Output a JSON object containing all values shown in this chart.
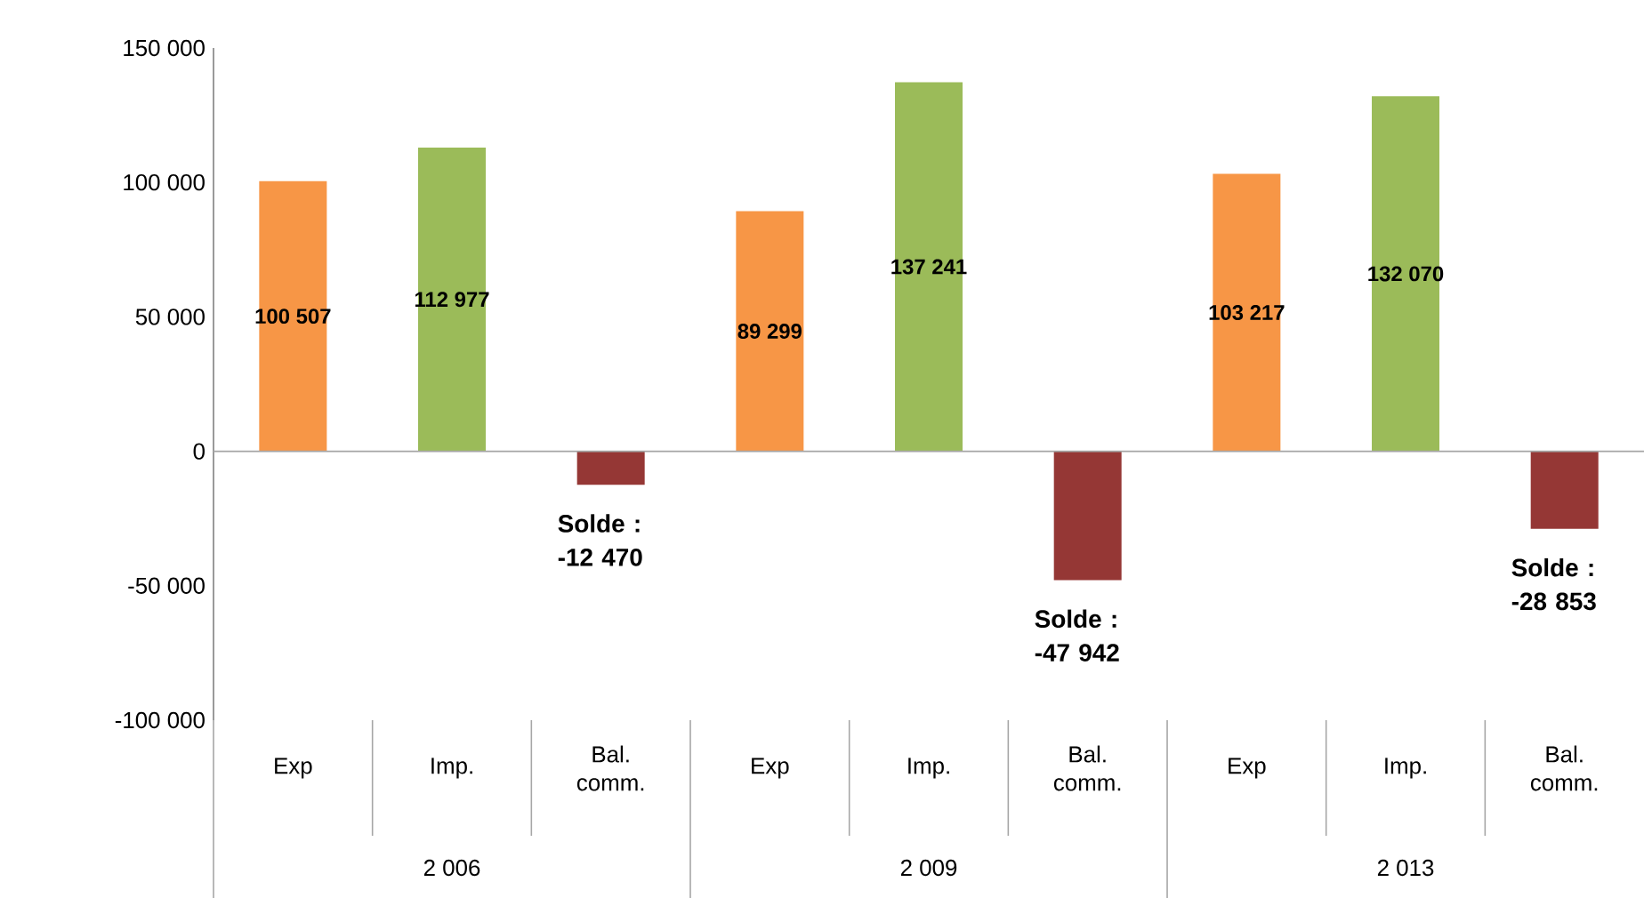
{
  "chart_data": {
    "type": "bar",
    "categories": [
      "Exp",
      "Imp.",
      "Bal. comm.",
      "Exp",
      "Imp.",
      "Bal. comm.",
      "Exp",
      "Imp.",
      "Bal. comm."
    ],
    "values": [
      100507,
      112977,
      -12470,
      89299,
      137241,
      -47942,
      103217,
      132070,
      -28853
    ],
    "colors": [
      "#f79646",
      "#9bbb59",
      "#953735",
      "#f79646",
      "#9bbb59",
      "#953735",
      "#f79646",
      "#9bbb59",
      "#953735"
    ],
    "value_labels": [
      "100 507",
      "112 977",
      "Solde : -12 470",
      "89 299",
      "137 241",
      "Solde : -47 942",
      "103 217",
      "132 070",
      "Solde : -28 853"
    ],
    "annotations": [
      "2 006",
      "2 009",
      "2 013"
    ],
    "ylim": [
      -100000,
      150000
    ],
    "yticks": [
      {
        "value": -100000,
        "label": "-100 000"
      },
      {
        "value": -50000,
        "label": "-50 000"
      },
      {
        "value": 0,
        "label": "0"
      },
      {
        "value": 50000,
        "label": "50 000"
      },
      {
        "value": 100000,
        "label": "100 000"
      },
      {
        "value": 150000,
        "label": "150 000"
      }
    ],
    "ref_lines": [
      {
        "axis": "y",
        "value": 0,
        "color": "#a6a6a6"
      }
    ],
    "grid": false
  }
}
